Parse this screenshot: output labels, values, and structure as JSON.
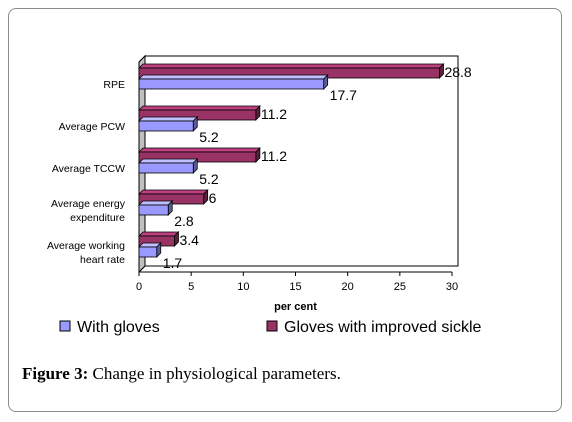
{
  "chart_data": {
    "type": "bar",
    "orientation": "horizontal",
    "categories": [
      "RPE",
      "Average PCW",
      "Average TCCW",
      "Average energy expenditure",
      "Average working heart rate"
    ],
    "category_lines": [
      [
        "RPE"
      ],
      [
        "Average PCW"
      ],
      [
        "Average TCCW"
      ],
      [
        "Average energy",
        "expenditure"
      ],
      [
        "Average working",
        "heart rate"
      ]
    ],
    "series": [
      {
        "name": "Gloves with improved sickle",
        "values": [
          28.8,
          11.2,
          11.2,
          6.2,
          3.4
        ],
        "labels": [
          "28.8",
          "11.2",
          "11.2",
          "6",
          "3.4"
        ],
        "color": "#993366"
      },
      {
        "name": "With gloves",
        "values": [
          17.7,
          5.2,
          5.2,
          2.8,
          1.7
        ],
        "labels": [
          "17.7",
          "5.2",
          "5.2",
          "2.8",
          "1.7"
        ],
        "color": "#9999ff"
      }
    ],
    "xlabel": "per cent",
    "xlim": [
      0,
      30
    ],
    "xticks": [
      0,
      5,
      10,
      15,
      20,
      25,
      30
    ],
    "legend_order": [
      "With gloves",
      "Gloves with improved sickle"
    ],
    "legend_position": "bottom",
    "grid": false
  },
  "caption": {
    "label": "Figure 3:",
    "text": " Change in physiological parameters."
  }
}
